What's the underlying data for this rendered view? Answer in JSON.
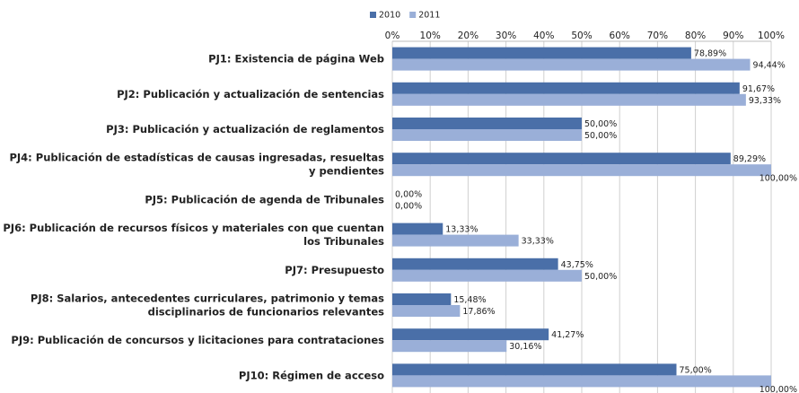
{
  "chart_data": {
    "type": "bar",
    "orientation": "horizontal",
    "categories": [
      "PJ1: Existencia de página Web",
      "PJ2: Publicación y actualización de sentencias",
      "PJ3: Publicación y actualización de reglamentos",
      "PJ4: Publicación de estadísticas de causas ingresadas, resueltas y pendientes",
      "PJ5: Publicación de agenda de Tribunales",
      "PJ6: Publicación de recursos físicos y materiales con que cuentan los Tribunales",
      "PJ7: Presupuesto",
      "PJ8: Salarios, antecedentes curriculares, patrimonio y temas disciplinarios de funcionarios relevantes",
      "PJ9: Publicación de concursos y licitaciones para contrataciones",
      "PJ10: Régimen de acceso"
    ],
    "series": [
      {
        "name": "2010",
        "color": "#4a6fa8",
        "values": [
          78.89,
          91.67,
          50,
          89.29,
          0,
          13.33,
          43.75,
          15.48,
          41.27,
          75
        ],
        "value_labels": [
          "78,89%",
          "91,67%",
          "50,00%",
          "89,29%",
          "0,00%",
          "13,33%",
          "43,75%",
          "15,48%",
          "41,27%",
          "75,00%"
        ]
      },
      {
        "name": "2011",
        "color": "#9aafd8",
        "values": [
          94.44,
          93.33,
          50,
          100,
          0,
          33.33,
          50,
          17.86,
          30.16,
          100
        ],
        "value_labels": [
          "94,44%",
          "93,33%",
          "50,00%",
          "100,00%",
          "0,00%",
          "33,33%",
          "50,00%",
          "17,86%",
          "30,16%",
          "100,00%"
        ]
      }
    ],
    "xlim": [
      0,
      100
    ],
    "xticks": [
      {
        "value": 0,
        "label": "0%"
      },
      {
        "value": 10,
        "label": "10%"
      },
      {
        "value": 20,
        "label": "20%"
      },
      {
        "value": 30,
        "label": "30%"
      },
      {
        "value": 40,
        "label": "40%"
      },
      {
        "value": 50,
        "label": "50%"
      },
      {
        "value": 60,
        "label": "60%"
      },
      {
        "value": 70,
        "label": "70%"
      },
      {
        "value": 80,
        "label": "80%"
      },
      {
        "value": 90,
        "label": "90%"
      },
      {
        "value": 100,
        "label": "100%"
      }
    ],
    "grid": true,
    "legend": "top"
  }
}
